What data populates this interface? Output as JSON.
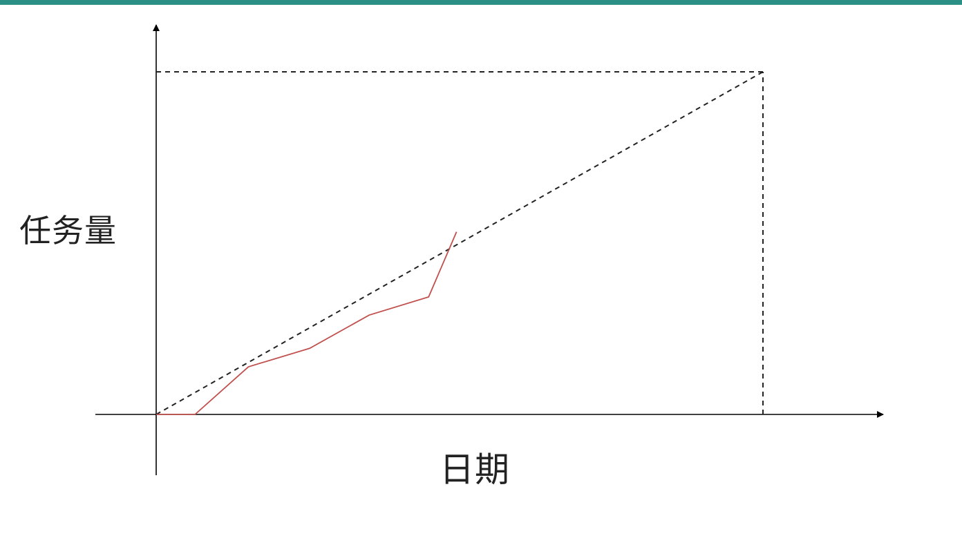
{
  "colors": {
    "top_bar": "#2b8f86",
    "axis": "#000000",
    "plan_line": "#222222",
    "actual_line": "#c0504d"
  },
  "chart_data": {
    "type": "line",
    "title": "",
    "xlabel": "日期",
    "ylabel": "任务量",
    "xlim": [
      0,
      118
    ],
    "ylim": [
      0,
      100
    ],
    "grid": false,
    "legend": "none",
    "reference_lines": [
      {
        "x": 100,
        "style": "dashed"
      },
      {
        "y": 100,
        "style": "dashed"
      }
    ],
    "series": [
      {
        "style": "dashed",
        "x": [
          0,
          100
        ],
        "y": [
          0,
          100
        ]
      },
      {
        "style": "solid",
        "x": [
          0,
          6.4,
          15.2,
          25.3,
          35.1,
          44.9,
          49.5
        ],
        "y": [
          0,
          0,
          13.9,
          19.3,
          29.0,
          34.3,
          53.3
        ]
      }
    ]
  }
}
